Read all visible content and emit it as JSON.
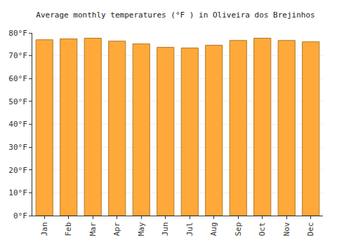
{
  "chart_data": {
    "type": "bar",
    "title": "Average monthly temperatures (°F ) in Oliveira dos Brejinhos",
    "categories": [
      "Jan",
      "Feb",
      "Mar",
      "Apr",
      "May",
      "Jun",
      "Jul",
      "Aug",
      "Sep",
      "Oct",
      "Nov",
      "Dec"
    ],
    "values": [
      77.0,
      77.4,
      77.7,
      76.4,
      75.2,
      73.7,
      73.4,
      74.6,
      76.7,
      77.7,
      76.7,
      76.1
    ],
    "color": "#ffa93a",
    "ylim": [
      0,
      80
    ],
    "yticks": [
      {
        "value": 0,
        "label": "0°F"
      },
      {
        "value": 10,
        "label": "10°F"
      },
      {
        "value": 20,
        "label": "20°F"
      },
      {
        "value": 30,
        "label": "30°F"
      },
      {
        "value": 40,
        "label": "40°F"
      },
      {
        "value": 50,
        "label": "50°F"
      },
      {
        "value": 60,
        "label": "60°F"
      },
      {
        "value": 70,
        "label": "70°F"
      },
      {
        "value": 80,
        "label": "80°F"
      }
    ],
    "grid": true
  }
}
